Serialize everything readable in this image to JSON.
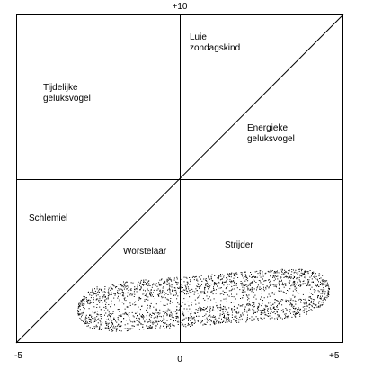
{
  "axis_labels": {
    "top": "+10",
    "left": "-5",
    "center": "0",
    "right": "+5"
  },
  "regions": [
    {
      "lines": [
        "Luie",
        "zondagskind"
      ]
    },
    {
      "lines": [
        "Tijdelijke",
        "geluksvogel"
      ]
    },
    {
      "lines": [
        "Energieke",
        "geluksvogel"
      ]
    },
    {
      "lines": [
        "Schlemiel"
      ]
    },
    {
      "lines": [
        "Worstelaar"
      ]
    },
    {
      "lines": [
        "Strijder"
      ]
    }
  ]
}
